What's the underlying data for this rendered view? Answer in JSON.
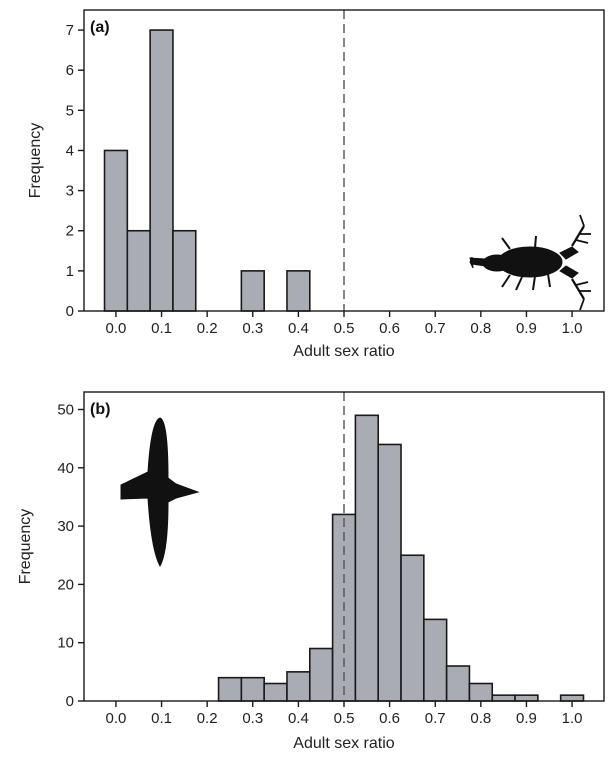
{
  "chart_data": [
    {
      "type": "bar",
      "panel_label": "(a)",
      "xlabel": "Adult sex ratio",
      "ylabel": "Frequency",
      "xlim": [
        -0.07,
        1.07
      ],
      "ylim": [
        0,
        7.5
      ],
      "bin_width": 0.05,
      "x_ticks": [
        "0.0",
        "0.1",
        "0.2",
        "0.3",
        "0.4",
        "0.5",
        "0.6",
        "0.7",
        "0.8",
        "0.9",
        "1.0"
      ],
      "y_ticks": [
        0,
        1,
        2,
        3,
        4,
        5,
        6,
        7
      ],
      "bins": [
        {
          "x": 0.0,
          "value": 4
        },
        {
          "x": 0.05,
          "value": 2
        },
        {
          "x": 0.1,
          "value": 7
        },
        {
          "x": 0.15,
          "value": 2
        },
        {
          "x": 0.3,
          "value": 1
        },
        {
          "x": 0.4,
          "value": 1
        }
      ],
      "reference_line": 0.5,
      "grid": false,
      "icon": "crustacean-silhouette-icon"
    },
    {
      "type": "bar",
      "panel_label": "(b)",
      "xlabel": "Adult sex ratio",
      "ylabel": "Frequency",
      "xlim": [
        -0.07,
        1.07
      ],
      "ylim": [
        0,
        53
      ],
      "bin_width": 0.05,
      "x_ticks": [
        "0.0",
        "0.1",
        "0.2",
        "0.3",
        "0.4",
        "0.5",
        "0.6",
        "0.7",
        "0.8",
        "0.9",
        "1.0"
      ],
      "y_ticks": [
        0,
        10,
        20,
        30,
        40,
        50
      ],
      "bins": [
        {
          "x": 0.25,
          "value": 4
        },
        {
          "x": 0.3,
          "value": 4
        },
        {
          "x": 0.35,
          "value": 3
        },
        {
          "x": 0.4,
          "value": 5
        },
        {
          "x": 0.45,
          "value": 9
        },
        {
          "x": 0.5,
          "value": 32
        },
        {
          "x": 0.55,
          "value": 49
        },
        {
          "x": 0.6,
          "value": 44
        },
        {
          "x": 0.65,
          "value": 25
        },
        {
          "x": 0.7,
          "value": 14
        },
        {
          "x": 0.75,
          "value": 6
        },
        {
          "x": 0.8,
          "value": 3
        },
        {
          "x": 0.85,
          "value": 1
        },
        {
          "x": 0.9,
          "value": 1
        },
        {
          "x": 1.0,
          "value": 1
        }
      ],
      "reference_line": 0.5,
      "grid": false,
      "icon": "bird-silhouette-icon"
    }
  ]
}
